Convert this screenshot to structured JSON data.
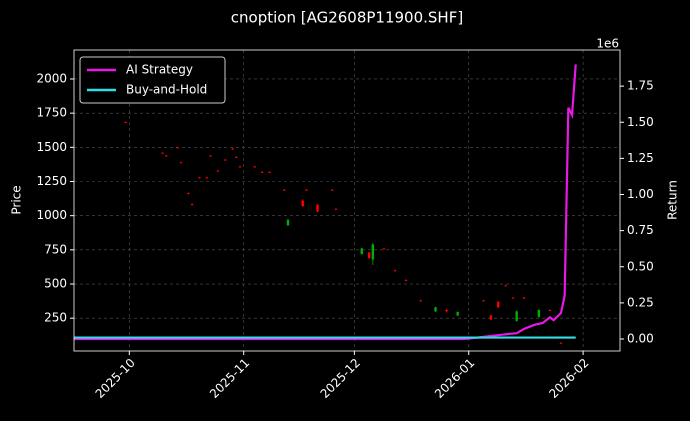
{
  "chart_data": {
    "type": "candlestick",
    "title": "cnoption [AG2608P11900.SHF]",
    "ylabel": "Price",
    "y2label": "Return",
    "offset_label": "1e6",
    "up_color": "#00b000",
    "down_color": "#ff0000",
    "x": [
      "2025-09-30",
      "2025-10-10",
      "2025-10-11",
      "2025-10-14",
      "2025-10-15",
      "2025-10-17",
      "2025-10-18",
      "2025-10-20",
      "2025-10-22",
      "2025-10-23",
      "2025-10-25",
      "2025-10-27",
      "2025-10-29",
      "2025-10-30",
      "2025-10-31",
      "2025-11-04",
      "2025-11-06",
      "2025-11-08",
      "2025-11-12",
      "2025-11-13",
      "2025-11-17",
      "2025-11-18",
      "2025-11-21",
      "2025-11-25",
      "2025-11-26",
      "2025-12-03",
      "2025-12-05",
      "2025-12-06",
      "2025-12-09",
      "2025-12-12",
      "2025-12-15",
      "2025-12-19",
      "2025-12-23",
      "2025-12-26",
      "2025-12-29",
      "2026-01-05",
      "2026-01-07",
      "2026-01-09",
      "2026-01-11",
      "2026-01-13",
      "2026-01-14",
      "2026-01-16",
      "2026-01-20",
      "2026-01-23",
      "2026-01-26"
    ],
    "open": [
      1685,
      1460,
      1440,
      1500,
      1390,
      1165,
      1085,
      1280,
      1280,
      1440,
      1330,
      1410,
      1490,
      1430,
      1360,
      1360,
      1320,
      1320,
      1190,
      930,
      1110,
      1190,
      1080,
      1190,
      1050,
      720,
      730,
      680,
      760,
      600,
      530,
      380,
      300,
      310,
      270,
      380,
      270,
      370,
      490,
      400,
      230,
      400,
      260,
      310,
      70
    ],
    "high": [
      1690,
      1465,
      1445,
      1505,
      1395,
      1170,
      1090,
      1285,
      1285,
      1445,
      1335,
      1415,
      1495,
      1435,
      1365,
      1365,
      1325,
      1325,
      1195,
      975,
      1120,
      1195,
      1085,
      1195,
      1055,
      765,
      735,
      800,
      765,
      605,
      535,
      385,
      335,
      320,
      300,
      385,
      275,
      375,
      495,
      405,
      305,
      405,
      315,
      315,
      75
    ],
    "low": [
      1680,
      1455,
      1435,
      1495,
      1385,
      1155,
      1075,
      1275,
      1275,
      1435,
      1325,
      1405,
      1485,
      1425,
      1355,
      1355,
      1315,
      1315,
      1185,
      925,
      1065,
      1185,
      1025,
      1185,
      1045,
      715,
      685,
      640,
      755,
      595,
      525,
      375,
      295,
      290,
      265,
      375,
      235,
      325,
      485,
      395,
      225,
      395,
      255,
      305,
      65
    ],
    "close": [
      1680,
      1455,
      1438,
      1498,
      1388,
      1158,
      1078,
      1278,
      1278,
      1438,
      1328,
      1408,
      1488,
      1428,
      1358,
      1358,
      1318,
      1318,
      1188,
      970,
      1070,
      1188,
      1030,
      1188,
      1048,
      760,
      690,
      790,
      758,
      598,
      528,
      378,
      330,
      300,
      295,
      378,
      240,
      330,
      488,
      398,
      300,
      398,
      310,
      308,
      68
    ],
    "series": [
      {
        "name": "AI Strategy",
        "color": "#e619e6",
        "axis": "y2",
        "x": [
          "2025-09-16",
          "2025-12-31",
          "2026-01-10",
          "2026-01-14",
          "2026-01-16",
          "2026-01-19",
          "2026-01-21",
          "2026-01-23",
          "2026-01-24",
          "2026-01-26",
          "2026-01-27",
          "2026-01-28",
          "2026-01-29",
          "2026-01-30"
        ],
        "values": [
          0,
          0,
          30000,
          40000,
          70000,
          100000,
          110000,
          150000,
          130000,
          180000,
          300000,
          1600000,
          1550000,
          1900000
        ]
      },
      {
        "name": "Buy-and-Hold",
        "color": "#33dde6",
        "axis": "y2",
        "x": [
          "2025-09-16",
          "2026-01-30"
        ],
        "values": [
          10000,
          10000
        ]
      }
    ],
    "xlim": [
      "2025-09-16",
      "2026-02-11"
    ],
    "xticks": [
      {
        "value": "2025-10-01",
        "label": "2025-10"
      },
      {
        "value": "2025-11-01",
        "label": "2025-11"
      },
      {
        "value": "2025-12-01",
        "label": "2025-12"
      },
      {
        "value": "2026-01-01",
        "label": "2026-01"
      },
      {
        "value": "2026-02-01",
        "label": "2026-02"
      }
    ],
    "ylim": [
      10,
      2212
    ],
    "yticks": [
      250,
      500,
      750,
      1000,
      1250,
      1500,
      1750,
      2000
    ],
    "y2lim": [
      -83000,
      2000000
    ],
    "y2ticks": [
      {
        "value": 0,
        "label": "0.00"
      },
      {
        "value": 250000,
        "label": "0.25"
      },
      {
        "value": 500000,
        "label": "0.50"
      },
      {
        "value": 750000,
        "label": "0.75"
      },
      {
        "value": 1000000,
        "label": "1.00"
      },
      {
        "value": 1250000,
        "label": "1.25"
      },
      {
        "value": 1500000,
        "label": "1.50"
      },
      {
        "value": 1750000,
        "label": "1.75"
      }
    ],
    "grid": true,
    "legend": "upper left"
  }
}
